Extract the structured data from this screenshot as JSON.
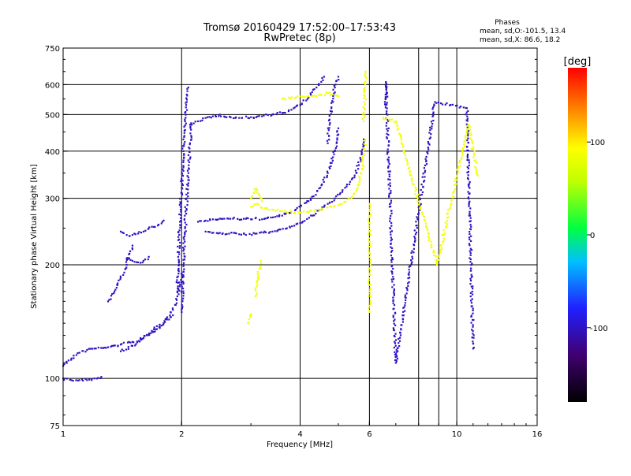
{
  "chart_data": {
    "type": "scatter",
    "title": "Tromsø 20160429 17:52:00–17:53:43",
    "subtitle": "RwPretec (8p)",
    "xlabel": "Frequency [MHz]",
    "ylabel": "Stationary phase Virtual Height [km]",
    "xscale": "log",
    "yscale": "log",
    "xlim": [
      1,
      16
    ],
    "ylim": [
      75,
      750
    ],
    "xticks": [
      1,
      2,
      4,
      6,
      10,
      16
    ],
    "xtick_labels": [
      "1",
      "2",
      "4",
      "6",
      "10",
      "16"
    ],
    "xgrid": [
      2,
      4,
      6,
      8,
      9,
      10
    ],
    "yticks": [
      75,
      100,
      200,
      300,
      400,
      500,
      600,
      750
    ],
    "ytick_labels": [
      "75",
      "100",
      "200",
      "300",
      "400",
      "500",
      "600",
      "750"
    ],
    "ygrid": [
      100,
      200,
      300,
      400,
      500,
      600
    ],
    "grid": true,
    "phases": {
      "heading": "Phases",
      "o_line": "mean, sd,O:-101.5, 13.4",
      "x_line": "mean, sd,X: 86.6, 18.2"
    },
    "colorbar": {
      "label": "[deg]",
      "range": [
        -180,
        180
      ],
      "ticks": [
        100,
        0,
        -100
      ],
      "tick_labels": [
        "100",
        "0",
        "-100"
      ],
      "placement": "right"
    },
    "series": [
      {
        "mode": "O",
        "phase": -101.5,
        "traces": [
          {
            "x": [
              1.0,
              1.05,
              1.1,
              1.15,
              1.2,
              1.25
            ],
            "y": [
              100,
              99,
              99,
              99,
              100,
              101
            ]
          },
          {
            "x": [
              1.0,
              1.05,
              1.1,
              1.15,
              1.2,
              1.3,
              1.4,
              1.5,
              1.6,
              1.7,
              1.8,
              1.9,
              1.95,
              2.0
            ],
            "y": [
              108,
              113,
              117,
              119,
              120,
              121,
              123,
              125,
              128,
              133,
              140,
              152,
              165,
              190
            ]
          },
          {
            "x": [
              1.3,
              1.35,
              1.4,
              1.45,
              1.5
            ],
            "y": [
              160,
              170,
              185,
              200,
              225
            ]
          },
          {
            "x": [
              1.4,
              1.45,
              1.5,
              1.55,
              1.6,
              1.7,
              1.8
            ],
            "y": [
              245,
              240,
              240,
              242,
              245,
              252,
              262
            ]
          },
          {
            "x": [
              1.45,
              1.5,
              1.55,
              1.6,
              1.65
            ],
            "y": [
              208,
              205,
              203,
              205,
              210
            ]
          },
          {
            "x": [
              1.4,
              1.5,
              1.6,
              1.7,
              1.8,
              1.9
            ],
            "y": [
              118,
              122,
              128,
              135,
              140,
              147
            ]
          },
          {
            "x": [
              1.95,
              1.96,
              1.98,
              2.0,
              2.02,
              2.04,
              2.06,
              2.08
            ],
            "y": [
              170,
              210,
              260,
              320,
              400,
              480,
              540,
              590
            ]
          },
          {
            "x": [
              2.0,
              2.02,
              2.04,
              2.06,
              2.08,
              2.1,
              2.12
            ],
            "y": [
              150,
              200,
              250,
              300,
              350,
              420,
              470
            ]
          },
          {
            "x": [
              2.1,
              2.2,
              2.3,
              2.4,
              2.5,
              2.6,
              2.8,
              3.0,
              3.2,
              3.4,
              3.6,
              3.8,
              4.0,
              4.2,
              4.4,
              4.6
            ],
            "y": [
              470,
              480,
              490,
              495,
              500,
              492,
              490,
              492,
              495,
              500,
              505,
              515,
              530,
              555,
              590,
              630
            ]
          },
          {
            "x": [
              2.2,
              2.3,
              2.4,
              2.5,
              2.7,
              3.0,
              3.3,
              3.6,
              3.9,
              4.2,
              4.5,
              4.7,
              4.9,
              5.0
            ],
            "y": [
              260,
              262,
              264,
              265,
              265,
              264,
              266,
              270,
              280,
              295,
              320,
              350,
              400,
              460
            ]
          },
          {
            "x": [
              4.7,
              4.75,
              4.8,
              4.85,
              4.9,
              4.95,
              5.0
            ],
            "y": [
              420,
              470,
              520,
              560,
              590,
              615,
              630
            ]
          },
          {
            "x": [
              2.3,
              2.5,
              2.8,
              3.1,
              3.4,
              3.7,
              4.0,
              4.3,
              4.6,
              4.9,
              5.2,
              5.5,
              5.7,
              5.8
            ],
            "y": [
              245,
              243,
              241,
              242,
              245,
              250,
              258,
              270,
              285,
              300,
              320,
              345,
              380,
              430
            ]
          },
          {
            "x": [
              6.6,
              6.6,
              7.0,
              8.8,
              10.6,
              11.0
            ],
            "y": [
              530,
              610,
              110,
              540,
              520,
              120
            ]
          }
        ]
      },
      {
        "mode": "X",
        "phase": 86.6,
        "traces": [
          {
            "x": [
              3.0,
              3.1,
              3.2,
              3.4,
              3.6,
              3.8,
              4.0,
              4.2,
              4.5,
              4.8,
              5.1,
              5.4,
              5.6,
              5.75,
              5.85
            ],
            "y": [
              285,
              290,
              283,
              280,
              278,
              276,
              275,
              276,
              280,
              285,
              290,
              300,
              320,
              360,
              430
            ]
          },
          {
            "x": [
              3.0,
              3.05,
              3.1,
              3.15,
              3.2
            ],
            "y": [
              300,
              310,
              318,
              305,
              295
            ]
          },
          {
            "x": [
              5.8,
              5.82,
              5.84,
              5.85,
              5.86,
              5.86
            ],
            "y": [
              480,
              520,
              560,
              600,
              630,
              650
            ]
          },
          {
            "x": [
              3.6,
              3.9,
              4.2,
              4.5,
              4.7,
              5.0
            ],
            "y": [
              550,
              555,
              560,
              565,
              570,
              560
            ]
          },
          {
            "x": [
              3.08,
              3.1,
              3.12,
              3.15,
              3.18
            ],
            "y": [
              165,
              175,
              185,
              195,
              205
            ]
          },
          {
            "x": [
              2.95,
              3.0
            ],
            "y": [
              140,
              148
            ]
          },
          {
            "x": [
              6.0,
              6.0,
              6.0,
              6.0,
              6.0,
              6.0,
              6.0
            ],
            "y": [
              150,
              170,
              190,
              210,
              230,
              250,
              290
            ]
          },
          {
            "x": [
              6.5,
              7.0,
              8.9,
              10.7,
              11.3
            ],
            "y": [
              490,
              480,
              200,
              470,
              345
            ]
          }
        ]
      }
    ]
  }
}
